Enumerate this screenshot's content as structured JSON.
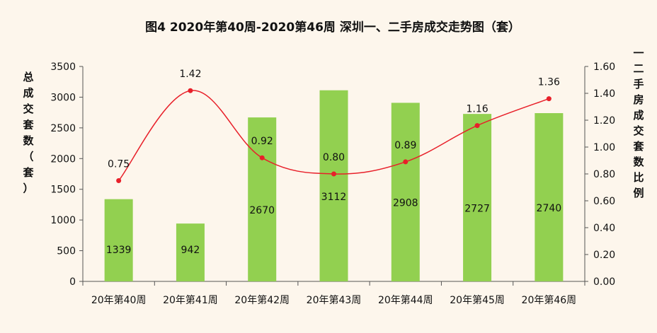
{
  "chart_data": {
    "type": "bar",
    "title": "图4  2020年第40周-2020第46周  深圳一、二手房成交走势图（套）",
    "categories": [
      "20年第40周",
      "20年第41周",
      "20年第42周",
      "20年第43周",
      "20年第44周",
      "20年第45周",
      "20年第46周"
    ],
    "series": [
      {
        "type": "bar",
        "axis": "left",
        "values": [
          1339,
          942,
          2670,
          3112,
          2908,
          2727,
          2740
        ],
        "color": "#92d050"
      },
      {
        "type": "line",
        "axis": "right",
        "values": [
          0.75,
          1.42,
          0.92,
          0.8,
          0.89,
          1.16,
          1.36
        ],
        "labels": [
          "0.75",
          "1.42",
          "0.92",
          "0.80",
          "0.89",
          "1.16",
          "1.36"
        ],
        "color": "#e8202a"
      }
    ],
    "ylabel": "总成交套数（套）",
    "y2label": "一二手房成交套数比例",
    "ylim": [
      0,
      3500
    ],
    "y2lim": [
      0,
      1.6
    ],
    "yticks": [
      "0",
      "500",
      "1000",
      "1500",
      "2000",
      "2500",
      "3000",
      "3500"
    ],
    "y2ticks": [
      "0.00",
      "0.20",
      "0.40",
      "0.60",
      "0.80",
      "1.00",
      "1.20",
      "1.40",
      "1.60"
    ],
    "grid": false,
    "background": "#fdf6ec"
  }
}
